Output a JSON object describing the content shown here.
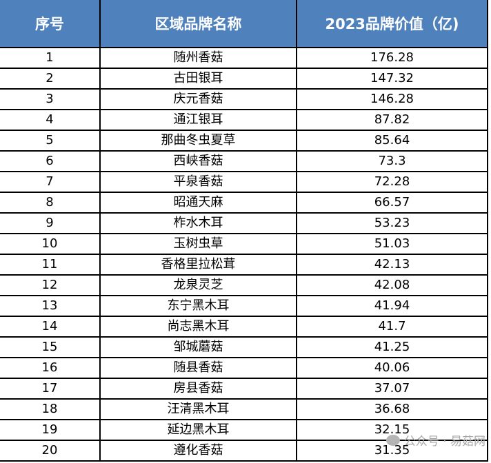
{
  "headers": [
    "序号",
    "区域品牌名称",
    "2023品牌价值（亿)"
  ],
  "rows": [
    [
      "1",
      "随州香菇",
      "176.28"
    ],
    [
      "2",
      "古田银耳",
      "147.32"
    ],
    [
      "3",
      "庆元香菇",
      "146.28"
    ],
    [
      "4",
      "通江银耳",
      "87.82"
    ],
    [
      "5",
      "那曲冬虫夏草",
      "85.64"
    ],
    [
      "6",
      "西峡香菇",
      "73.3"
    ],
    [
      "7",
      "平泉香菇",
      "72.28"
    ],
    [
      "8",
      "昭通天麻",
      "66.57"
    ],
    [
      "9",
      "柞水木耳",
      "53.23"
    ],
    [
      "10",
      "玉树虫草",
      "51.03"
    ],
    [
      "11",
      "香格里拉松茸",
      "42.13"
    ],
    [
      "12",
      "龙泉灵芝",
      "42.08"
    ],
    [
      "13",
      "东宁黑木耳",
      "41.94"
    ],
    [
      "14",
      "尚志黑木耳",
      "41.7"
    ],
    [
      "15",
      "邹城蘑菇",
      "41.25"
    ],
    [
      "16",
      "随县香菇",
      "40.06"
    ],
    [
      "17",
      "房县香菇",
      "37.07"
    ],
    [
      "18",
      "汪清黑木耳",
      "36.68"
    ],
    [
      "19",
      "延边黑木耳",
      "32.15"
    ],
    [
      "20",
      "遵化香菇",
      "31.35"
    ]
  ],
  "watermark": "公众号 · 易菇网",
  "colors": {
    "header_bg": "#4f81bd",
    "header_text": "#ffffff"
  }
}
